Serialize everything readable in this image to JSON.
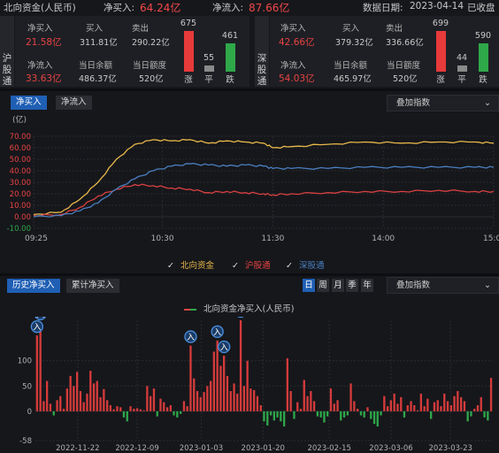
{
  "header": {
    "title": "北向资金(人民币)",
    "net_buy_label": "净买入:",
    "net_buy_value": "64.24亿",
    "net_inflow_label": "净流入:",
    "net_inflow_value": "87.66亿",
    "date_label": "数据日期:",
    "date_value": "2023-04-14",
    "status": "已收盘"
  },
  "sh": {
    "name": "沪股通",
    "net_buy_label": "净买入",
    "net_buy": "21.58亿",
    "buy_label": "买入",
    "buy": "311.81亿",
    "sell_label": "卖出",
    "sell": "290.22亿",
    "net_inflow_label": "净流入",
    "net_inflow": "33.63亿",
    "balance_label": "当日余额",
    "balance": "486.37亿",
    "quota_label": "当日额度",
    "quota": "520亿",
    "up": "675",
    "flat": "55",
    "down": "461",
    "up_label": "涨",
    "flat_label": "平",
    "down_label": "跌"
  },
  "sz": {
    "name": "深股通",
    "net_buy_label": "净买入",
    "net_buy": "42.66亿",
    "buy_label": "买入",
    "buy": "379.32亿",
    "sell_label": "卖出",
    "sell": "336.66亿",
    "net_inflow_label": "净流入",
    "net_inflow": "54.03亿",
    "balance_label": "当日余额",
    "balance": "465.97亿",
    "quota_label": "当日额度",
    "quota": "520亿",
    "up": "699",
    "flat": "44",
    "down": "590",
    "up_label": "涨",
    "flat_label": "平",
    "down_label": "跌"
  },
  "intraday": {
    "tabs": [
      "净买入",
      "净流入"
    ],
    "overlay_label": "叠加指数",
    "legend": [
      "北向资金",
      "沪股通",
      "深股通"
    ],
    "colors": {
      "north": "#e8b84a",
      "sh": "#d94141",
      "sz": "#4a7fc1"
    }
  },
  "history": {
    "tabs": [
      "历史净买入",
      "累计净买入"
    ],
    "period_buttons": [
      "日",
      "周",
      "月",
      "季",
      "年"
    ],
    "overlay_label": "叠加指数",
    "legend_title": "北向资金净买入(人民币)",
    "marker_label": "入"
  },
  "chart_data": [
    {
      "type": "line",
      "ylabel": "(亿)",
      "ylim": [
        -10,
        70
      ],
      "yticks": [
        "70.00",
        "60.00",
        "50.00",
        "40.00",
        "30.00",
        "20.00",
        "10.00",
        "0.00",
        "-10.00"
      ],
      "xticks": [
        "09:25",
        "10:30",
        "11:30",
        "14:00",
        "15:00"
      ],
      "x": [
        "09:25",
        "09:35",
        "09:45",
        "09:55",
        "10:05",
        "10:15",
        "10:25",
        "10:35",
        "10:45",
        "10:55",
        "11:05",
        "11:15",
        "11:25",
        "11:30",
        "13:10",
        "13:30",
        "13:50",
        "14:10",
        "14:30",
        "14:50",
        "15:00"
      ],
      "series": [
        {
          "name": "北向资金",
          "values": [
            2,
            4,
            15,
            30,
            50,
            63,
            67,
            66,
            67,
            64,
            66,
            65,
            64,
            60,
            61,
            63,
            65,
            64,
            65,
            65,
            64
          ]
        },
        {
          "name": "沪股通",
          "values": [
            1,
            2,
            8,
            18,
            24,
            28,
            27,
            25,
            24,
            21,
            22,
            21,
            20,
            19,
            20,
            21,
            22,
            22,
            23,
            22,
            22
          ]
        },
        {
          "name": "深股通",
          "values": [
            0,
            1,
            5,
            12,
            24,
            33,
            40,
            44,
            46,
            45,
            44,
            45,
            44,
            42,
            42,
            42,
            43,
            43,
            43,
            43,
            43
          ]
        }
      ]
    },
    {
      "type": "bar",
      "ylim": [
        -58,
        180
      ],
      "yticks": [
        "100",
        "50",
        "0",
        "-58"
      ],
      "xticks": [
        "2022-11-22",
        "2022-12-09",
        "2023-01-03",
        "2023-01-20",
        "2023-02-15",
        "2023-03-06",
        "2023-03-23"
      ],
      "series": [
        {
          "name": "北向资金净买入(人民币)",
          "values": [
            150,
            175,
            20,
            60,
            15,
            -8,
            22,
            30,
            5,
            45,
            70,
            50,
            78,
            40,
            18,
            35,
            80,
            55,
            60,
            28,
            44,
            22,
            12,
            4,
            10,
            8,
            -12,
            -20,
            10,
            5,
            6,
            4,
            2,
            50,
            30,
            45,
            -10,
            25,
            18,
            8,
            12,
            -8,
            -12,
            -5,
            20,
            10,
            130,
            65,
            40,
            28,
            38,
            50,
            60,
            118,
            140,
            90,
            110,
            70,
            40,
            55,
            35,
            180,
            50,
            100,
            45,
            42,
            30,
            12,
            -20,
            -28,
            -8,
            -18,
            -12,
            -20,
            -30,
            105,
            40,
            -15,
            18,
            5,
            62,
            30,
            40,
            20,
            -10,
            -12,
            -22,
            -10,
            45,
            15,
            22,
            -18,
            -12,
            -8,
            55,
            20,
            5,
            -8,
            -12,
            8,
            -15,
            -25,
            -30,
            -8,
            30,
            10,
            22,
            35,
            15,
            28,
            -12,
            12,
            20,
            12,
            2,
            35,
            10,
            25,
            -15,
            18,
            22,
            10,
            35,
            20,
            12,
            30,
            40,
            28,
            20,
            -20,
            -10,
            5,
            12,
            28,
            -12,
            -18,
            66
          ]
        },
        {
          "name": "大额净买入标记",
          "indices": [
            0,
            1,
            46,
            54,
            56,
            61
          ]
        }
      ]
    }
  ]
}
